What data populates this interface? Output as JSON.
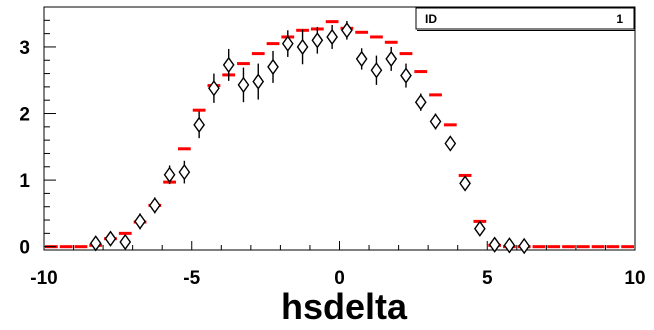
{
  "chart_data": {
    "type": "scatter",
    "xlabel": "hsdelta",
    "ylabel": "",
    "xlim": [
      -10,
      10
    ],
    "ylim": [
      -0.05,
      3.6
    ],
    "x_ticks": [
      "-10",
      "-5",
      "0",
      "5",
      "10"
    ],
    "y_ticks": [
      "0",
      "1",
      "2",
      "3"
    ],
    "grid": false,
    "stats_box": {
      "label": "ID",
      "value": "1"
    },
    "series": [
      {
        "style": "histogram-red-dash",
        "color": "#ff0000",
        "bin_width": 0.5,
        "x": [
          -9.75,
          -9.25,
          -8.75,
          -8.25,
          -7.75,
          -7.25,
          -6.75,
          -6.25,
          -5.75,
          -5.25,
          -4.75,
          -4.25,
          -3.75,
          -3.25,
          -2.75,
          -2.25,
          -1.75,
          -1.25,
          -0.75,
          -0.25,
          0.25,
          0.75,
          1.25,
          1.75,
          2.25,
          2.75,
          3.25,
          3.75,
          4.25,
          4.75,
          5.25,
          5.75,
          6.25,
          6.75,
          7.25,
          7.75,
          8.25,
          8.75,
          9.25,
          9.75
        ],
        "y": [
          0.0,
          0.0,
          0.0,
          0.02,
          0.12,
          0.2,
          0.37,
          0.62,
          0.97,
          1.47,
          2.05,
          2.42,
          2.58,
          2.75,
          2.9,
          3.05,
          3.15,
          3.25,
          3.27,
          3.38,
          3.28,
          3.22,
          3.15,
          3.07,
          2.9,
          2.63,
          2.28,
          1.83,
          1.07,
          0.38,
          0.02,
          0.0,
          0.0,
          0.0,
          0.0,
          0.0,
          0.0,
          0.0,
          0.0,
          0.0
        ]
      },
      {
        "style": "diamond-markers-with-error-bars",
        "color": "#000000",
        "x": [
          -8.25,
          -7.75,
          -7.25,
          -6.75,
          -6.25,
          -5.75,
          -5.25,
          -4.75,
          -4.25,
          -3.75,
          -3.25,
          -2.75,
          -2.25,
          -1.75,
          -1.25,
          -0.75,
          -0.25,
          0.25,
          0.75,
          1.25,
          1.75,
          2.25,
          2.75,
          3.25,
          3.75,
          4.25,
          4.75,
          5.25,
          5.75,
          6.25
        ],
        "y": [
          0.05,
          0.12,
          0.07,
          0.38,
          0.62,
          1.08,
          1.12,
          1.83,
          2.38,
          2.73,
          2.43,
          2.48,
          2.7,
          3.05,
          3.0,
          3.1,
          3.15,
          3.25,
          2.82,
          2.65,
          2.82,
          2.57,
          2.17,
          1.88,
          1.55,
          0.95,
          0.27,
          0.03,
          0.02,
          0.01
        ],
        "err": [
          0.06,
          0.08,
          0.08,
          0.12,
          0.12,
          0.14,
          0.17,
          0.2,
          0.22,
          0.24,
          0.26,
          0.27,
          0.24,
          0.2,
          0.26,
          0.2,
          0.18,
          0.14,
          0.16,
          0.22,
          0.18,
          0.18,
          0.13,
          0.12,
          0.1,
          0.1,
          0.1,
          0.06,
          0.06,
          0.05
        ]
      }
    ]
  }
}
